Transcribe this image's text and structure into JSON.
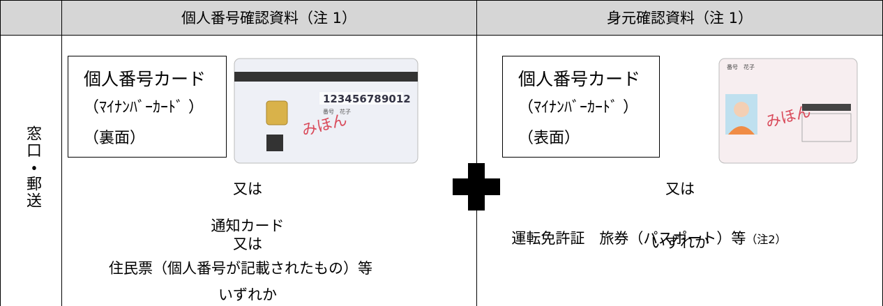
{
  "table": {
    "header": [
      "個人番号確認資料（注 1）",
      "身元確認資料（注 1）"
    ],
    "row_label": "窓口・郵送",
    "left": {
      "card_label": [
        "個人番号カード",
        "（ﾏｲﾅﾝﾊﾞｰｶｰﾄﾞ ）",
        "（裏面）"
      ],
      "card_image": {
        "number": [
          "1234",
          "5678",
          "9012"
        ],
        "sample": "みほん",
        "name": "番号　花子"
      },
      "alternatives": [
        "又は",
        "通知カード",
        "又は",
        "住民票（個人番号が記載されたもの）等",
        "いずれか"
      ]
    },
    "right": {
      "card_label": [
        "個人番号カード",
        "（ﾏｲﾅﾝﾊﾞｰｶｰﾄﾞ ）",
        "（表面）"
      ],
      "card_image": {
        "name": "番号　花子",
        "sample": "みほん"
      },
      "alternatives": [
        "又は",
        "運転免許証　旅券（パスポート）等",
        "（注2）",
        "いずれか"
      ]
    }
  }
}
